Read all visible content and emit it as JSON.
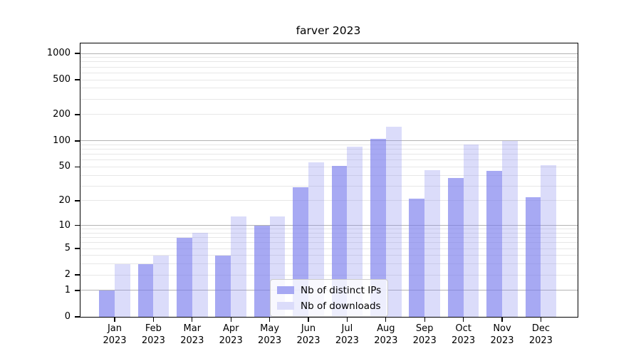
{
  "chart_data": {
    "type": "bar",
    "title": "farver 2023",
    "categories": [
      "Jan 2023",
      "Feb 2023",
      "Mar 2023",
      "Apr 2023",
      "May 2023",
      "Jun 2023",
      "Jul 2023",
      "Aug 2023",
      "Sep 2023",
      "Oct 2023",
      "Nov 2023",
      "Dec 2023"
    ],
    "months": [
      "Jan",
      "Feb",
      "Mar",
      "Apr",
      "May",
      "Jun",
      "Jul",
      "Aug",
      "Sep",
      "Oct",
      "Nov",
      "Dec"
    ],
    "year": "2023",
    "series": [
      {
        "name": "Nb of distinct IPs",
        "values": [
          1,
          3,
          7,
          4,
          10,
          29,
          51,
          106,
          21,
          37,
          45,
          22
        ]
      },
      {
        "name": "Nb of downloads",
        "values": [
          3,
          4,
          8,
          13,
          13,
          56,
          85,
          146,
          46,
          91,
          99,
          52
        ]
      }
    ],
    "xlabel": "",
    "ylabel": "",
    "yscale": "log1p",
    "ylim": [
      0,
      1300
    ],
    "yticks": [
      0,
      1,
      2,
      5,
      10,
      20,
      50,
      100,
      200,
      500,
      1000
    ],
    "ytick_labels": [
      "0",
      "1",
      "2",
      "5",
      "10",
      "20",
      "50",
      "100",
      "200",
      "500",
      "1000"
    ],
    "grid": "on",
    "legend_position": "lower center"
  },
  "legend": {
    "items": [
      {
        "label": "Nb of distinct IPs",
        "series_index": 0
      },
      {
        "label": "Nb of downloads",
        "series_index": 1
      }
    ]
  },
  "colors": {
    "bar_distinct_ips": "#a6a8f3",
    "bar_downloads": "#dbdcfa",
    "bar_distinct_ips_rgba": "rgba(120,123,236,0.65)",
    "bar_downloads_rgba": "rgba(135,138,238,0.30)",
    "grid_major": "#b3b3b3",
    "grid_minor": "#e7e7e7",
    "axis": "#000000",
    "background": "#ffffff"
  }
}
